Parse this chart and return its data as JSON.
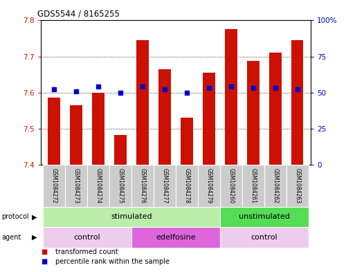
{
  "title": "GDS5544 / 8165255",
  "samples": [
    "GSM1084272",
    "GSM1084273",
    "GSM1084274",
    "GSM1084275",
    "GSM1084276",
    "GSM1084277",
    "GSM1084278",
    "GSM1084279",
    "GSM1084260",
    "GSM1084261",
    "GSM1084262",
    "GSM1084263"
  ],
  "transformed_count": [
    7.585,
    7.565,
    7.6,
    7.483,
    7.745,
    7.665,
    7.53,
    7.655,
    7.775,
    7.688,
    7.71,
    7.745
  ],
  "percentile_rank": [
    52,
    51,
    54,
    50,
    54,
    52,
    50,
    53,
    54,
    53,
    53,
    52
  ],
  "ylim_left": [
    7.4,
    7.8
  ],
  "ylim_right": [
    0,
    100
  ],
  "yticks_left": [
    7.4,
    7.5,
    7.6,
    7.7,
    7.8
  ],
  "yticks_right": [
    0,
    25,
    50,
    75,
    100
  ],
  "ytick_labels_right": [
    "0",
    "25",
    "50",
    "75",
    "100%"
  ],
  "bar_color": "#cc1100",
  "dot_color": "#0000cc",
  "background_color": "#ffffff",
  "grid_color": "#000000",
  "protocol_groups": [
    {
      "label": "stimulated",
      "start": 0,
      "end": 7,
      "color": "#bbeeaa"
    },
    {
      "label": "unstimulated",
      "start": 8,
      "end": 11,
      "color": "#55dd55"
    }
  ],
  "agent_groups": [
    {
      "label": "control",
      "start": 0,
      "end": 3,
      "color": "#eeccee"
    },
    {
      "label": "edelfosine",
      "start": 4,
      "end": 7,
      "color": "#dd66dd"
    },
    {
      "label": "control",
      "start": 8,
      "end": 11,
      "color": "#eeccee"
    }
  ],
  "label_box_color": "#cccccc",
  "legend_items": [
    {
      "label": "transformed count",
      "color": "#cc1100"
    },
    {
      "label": "percentile rank within the sample",
      "color": "#0000cc"
    }
  ]
}
